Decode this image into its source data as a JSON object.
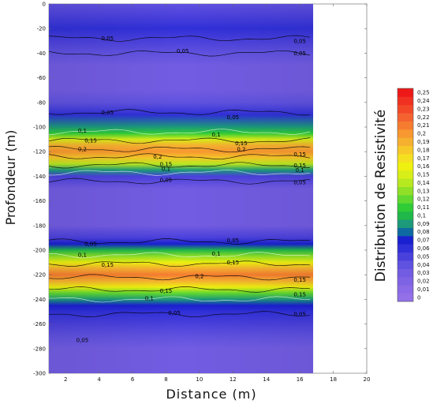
{
  "chart_data": {
    "type": "heatmap",
    "title": "",
    "xlabel": "Distance (m)",
    "ylabel": "Profondeur (m)",
    "colorbar_label": "Distribution de Resistivité",
    "xlim": [
      1,
      20
    ],
    "ylim": [
      -300,
      0
    ],
    "data_extent_x": [
      1,
      16.8
    ],
    "x_ticks": [
      "2",
      "4",
      "6",
      "8",
      "10",
      "12",
      "14",
      "16",
      "18",
      "20"
    ],
    "y_ticks": [
      "0",
      "-20",
      "-40",
      "-60",
      "-80",
      "-100",
      "-120",
      "-140",
      "-160",
      "-180",
      "-200",
      "-220",
      "-240",
      "-260",
      "-280",
      "-300"
    ],
    "colorbar_levels": [
      "0",
      "0,01",
      "0,02",
      "0,03",
      "0,04",
      "0,05",
      "0,06",
      "0,07",
      "0,08",
      "0,09",
      "0,1",
      "0,11",
      "0,12",
      "0,13",
      "0,14",
      "0,15",
      "0,16",
      "0,17",
      "0,18",
      "0,19",
      "0,2",
      "0,21",
      "0,22",
      "0,23",
      "0,24",
      "0,25"
    ],
    "colorbar_colors": [
      "#9370e8",
      "#8a6ae6",
      "#7e63e4",
      "#725ce2",
      "#6052e0",
      "#4a40dc",
      "#3030d8",
      "#1a20d0",
      "#0e6aa0",
      "#1c9a7a",
      "#20b848",
      "#30cc38",
      "#60d830",
      "#90e028",
      "#b8e820",
      "#d8ee18",
      "#eef010",
      "#f4e020",
      "#f6c828",
      "#f6b030",
      "#f89830",
      "#f67c30",
      "#f46230",
      "#f24828",
      "#f03020",
      "#ee1818"
    ],
    "profile_depths": [
      0,
      -10,
      -20,
      -30,
      -40,
      -50,
      -60,
      -70,
      -80,
      -90,
      -100,
      -105,
      -110,
      -115,
      -120,
      -125,
      -130,
      -135,
      -140,
      -150,
      -160,
      -170,
      -180,
      -190,
      -195,
      -200,
      -205,
      -210,
      -215,
      -220,
      -225,
      -230,
      -235,
      -240,
      -245,
      -250,
      -260,
      -270,
      -280,
      -290,
      -300
    ],
    "profile_values": [
      0.04,
      0.05,
      0.06,
      0.05,
      0.04,
      0.03,
      0.03,
      0.03,
      0.04,
      0.06,
      0.09,
      0.11,
      0.15,
      0.19,
      0.2,
      0.18,
      0.14,
      0.09,
      0.05,
      0.03,
      0.03,
      0.03,
      0.03,
      0.05,
      0.07,
      0.1,
      0.13,
      0.16,
      0.19,
      0.21,
      0.19,
      0.16,
      0.12,
      0.09,
      0.07,
      0.06,
      0.05,
      0.04,
      0.03,
      0.03,
      0.03
    ],
    "contour_labels": [
      {
        "text": "0,05",
        "x": 4.5,
        "y": -28
      },
      {
        "text": "0,05",
        "x": 9,
        "y": -38
      },
      {
        "text": "0,05",
        "x": 16,
        "y": -30
      },
      {
        "text": "0,05",
        "x": 16,
        "y": -40
      },
      {
        "text": "0,05",
        "x": 4.5,
        "y": -88
      },
      {
        "text": "0,05",
        "x": 12,
        "y": -92
      },
      {
        "text": "0,1",
        "x": 3,
        "y": -103
      },
      {
        "text": "0,1",
        "x": 11,
        "y": -106
      },
      {
        "text": "0,15",
        "x": 3.5,
        "y": -111
      },
      {
        "text": "0,15",
        "x": 12.5,
        "y": -113
      },
      {
        "text": "0,2",
        "x": 3,
        "y": -118
      },
      {
        "text": "0,2",
        "x": 12.5,
        "y": -118
      },
      {
        "text": "0,2",
        "x": 7.5,
        "y": -124
      },
      {
        "text": "0,15",
        "x": 16,
        "y": -122
      },
      {
        "text": "0,15",
        "x": 16,
        "y": -131
      },
      {
        "text": "0,15",
        "x": 8,
        "y": -130
      },
      {
        "text": "0,1",
        "x": 8,
        "y": -134
      },
      {
        "text": "0,1",
        "x": 16,
        "y": -135
      },
      {
        "text": "0,05",
        "x": 8,
        "y": -143
      },
      {
        "text": "0,05",
        "x": 16,
        "y": -145
      },
      {
        "text": "0,05",
        "x": 3.5,
        "y": -195
      },
      {
        "text": "0,05",
        "x": 12,
        "y": -192
      },
      {
        "text": "0,1",
        "x": 3,
        "y": -204
      },
      {
        "text": "0,1",
        "x": 11,
        "y": -203
      },
      {
        "text": "0,15",
        "x": 4.5,
        "y": -212
      },
      {
        "text": "0,15",
        "x": 12,
        "y": -210
      },
      {
        "text": "0,2",
        "x": 10,
        "y": -221
      },
      {
        "text": "0,15",
        "x": 16,
        "y": -224
      },
      {
        "text": "0,15",
        "x": 8,
        "y": -233
      },
      {
        "text": "0,15",
        "x": 16,
        "y": -236
      },
      {
        "text": "0,1",
        "x": 7,
        "y": -239
      },
      {
        "text": "0,05",
        "x": 8.5,
        "y": -251
      },
      {
        "text": "0,05",
        "x": 16,
        "y": -252
      },
      {
        "text": "0,05",
        "x": 3,
        "y": -273
      }
    ],
    "grid": false,
    "legend": "colorbar-right"
  }
}
